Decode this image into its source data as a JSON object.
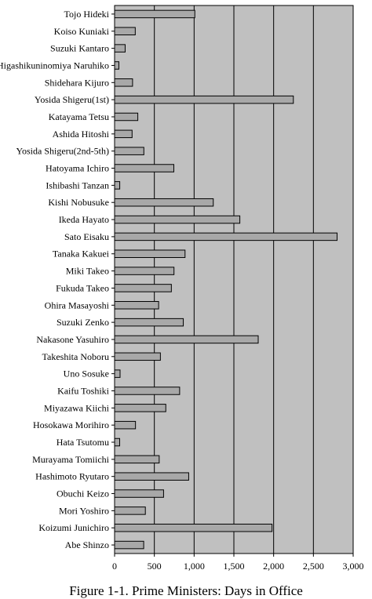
{
  "chart_data": {
    "type": "bar",
    "orientation": "horizontal",
    "categories": [
      "Tojo Hideki",
      "Koiso Kuniaki",
      "Suzuki Kantaro",
      "Higashikuninomiya Naruhiko",
      "Shidehara Kijuro",
      "Yosida Shigeru(1st)",
      "Katayama Tetsu",
      "Ashida Hitoshi",
      "Yosida Shigeru(2nd-5th)",
      "Hatoyama Ichiro",
      "Ishibashi Tanzan",
      "Kishi Nobusuke",
      "Ikeda Hayato",
      "Sato Eisaku",
      "Tanaka Kakuei",
      "Miki Takeo",
      "Fukuda Takeo",
      "Ohira Masayoshi",
      "Suzuki Zenko",
      "Nakasone Yasuhiro",
      "Takeshita Noboru",
      "Uno Sosuke",
      "Kaifu Toshiki",
      "Miyazawa Kiichi",
      "Hosokawa Morihiro",
      "Hata Tsutomu",
      "Murayama Tomiichi",
      "Hashimoto Ryutaro",
      "Obuchi Keizo",
      "Mori Yoshiro",
      "Koizumi Junichiro",
      "Abe Shinzo"
    ],
    "values": [
      1009,
      260,
      133,
      54,
      226,
      2248,
      292,
      220,
      368,
      745,
      65,
      1241,
      1575,
      2798,
      886,
      747,
      714,
      554,
      864,
      1806,
      576,
      69,
      818,
      644,
      263,
      64,
      561,
      932,
      616,
      387,
      1980,
      366
    ],
    "xlim": [
      0,
      3000
    ],
    "xticks": [
      "0",
      "500",
      "1,000",
      "1,500",
      "2,000",
      "2,500",
      "3,000"
    ],
    "xtick_values": [
      0,
      500,
      1000,
      1500,
      2000,
      2500,
      3000
    ],
    "grid": true,
    "title": "Figure 1-1. Prime Ministers: Days in Office",
    "colors": {
      "plot_bg": "#c0c0c0",
      "bar_fill": "#a8a8a8",
      "bar_stroke": "#000000",
      "grid": "#000000"
    }
  }
}
